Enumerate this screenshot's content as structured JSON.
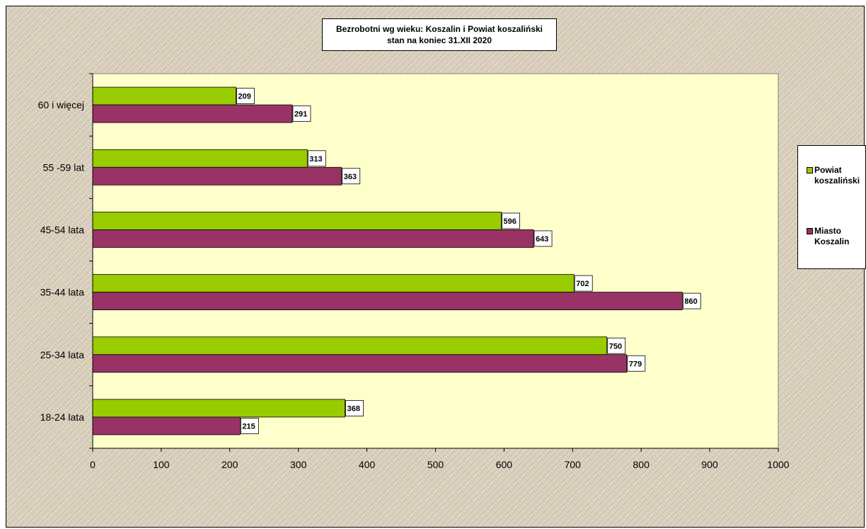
{
  "title": {
    "line1": "Bezrobotni wg wieku: Koszalin i Powiat koszaliński",
    "line2": "stan na koniec 31.XII 2020"
  },
  "legend": {
    "items": [
      {
        "label_line1": "Powiat",
        "label_line2": "koszaliński",
        "color": "#99cc00"
      },
      {
        "label_line1": "Miasto",
        "label_line2": "Koszalin",
        "color": "#993366"
      }
    ]
  },
  "colors": {
    "plot_background": "#ffffcc",
    "series_1": "#99cc00",
    "series_2": "#993366"
  },
  "chart_data": {
    "type": "bar",
    "orientation": "horizontal",
    "title": "Bezrobotni wg wieku: Koszalin i Powiat koszaliński stan na koniec 31.XII 2020",
    "categories": [
      "60 i więcej",
      "55 -59 lat",
      "45-54 lata",
      "35-44 lata",
      "25-34 lata",
      "18-24 lata"
    ],
    "series": [
      {
        "name": "Powiat koszaliński",
        "values": [
          209,
          313,
          596,
          702,
          750,
          368
        ]
      },
      {
        "name": "Miasto Koszalin",
        "values": [
          291,
          363,
          643,
          860,
          779,
          215
        ]
      }
    ],
    "xlim": [
      0,
      1000
    ],
    "xticks": [
      0,
      100,
      200,
      300,
      400,
      500,
      600,
      700,
      800,
      900,
      1000
    ],
    "xlabel": "",
    "ylabel": "",
    "grid": false,
    "legend_position": "right",
    "data_labels": true
  }
}
